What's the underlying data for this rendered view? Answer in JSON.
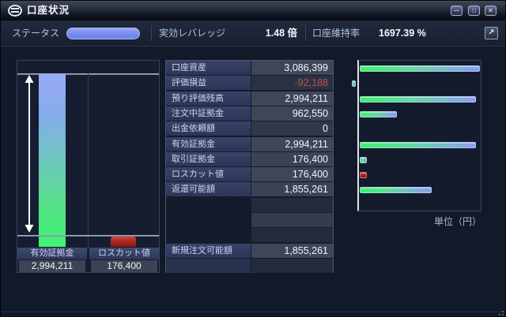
{
  "window": {
    "title": "口座状況",
    "controls": {
      "minimize_glyph": "─",
      "maximize_glyph": "□",
      "close_glyph": "✕"
    }
  },
  "status_bar": {
    "status_label": "ステータス",
    "leverage_label": "実効レバレッジ",
    "leverage_value": "1.48 倍",
    "maintenance_label": "口座維持率",
    "maintenance_value": "1697.39 %",
    "popout_glyph": "↗"
  },
  "left_chart": {
    "columns": [
      {
        "label": "有効証拠金",
        "value": "2,994,211"
      },
      {
        "label": "ロスカット値",
        "value": "176,400"
      }
    ]
  },
  "table": {
    "rows": [
      {
        "label": "口座資産",
        "value": "3,086,399",
        "shade": "light"
      },
      {
        "label": "評価損益",
        "value": "-92,188",
        "shade": "dark",
        "negative": true
      },
      {
        "label": "預り評価残高",
        "value": "2,994,211",
        "shade": "light"
      },
      {
        "label": "注文中証拠金",
        "value": "962,550",
        "shade": "light"
      },
      {
        "label": "出金依頼額",
        "value": "0",
        "shade": "mid"
      },
      {
        "label": "有効証拠金",
        "value": "2,994,211",
        "shade": "light"
      },
      {
        "label": "取引証拠金",
        "value": "176,400",
        "shade": "mid2"
      },
      {
        "label": "ロスカット値",
        "value": "176,400",
        "shade": "light"
      },
      {
        "label": "返還可能額",
        "value": "1,855,261",
        "shade": "mid2"
      },
      {
        "shade": "spdark"
      },
      {
        "shade": "splight"
      },
      {
        "shade": "spdark"
      },
      {
        "label": "新規注文可能額",
        "value": "1,855,261",
        "shade": "light"
      },
      {
        "shade": "spdark",
        "label_tint": true
      }
    ]
  },
  "right_chart": {
    "unit_label": "単位（円）"
  },
  "chart_data": [
    {
      "type": "bar",
      "orientation": "vertical",
      "title": "margin-level-gauge",
      "categories": [
        "有効証拠金",
        "ロスカット値"
      ],
      "values": [
        2994211,
        176400
      ],
      "colors": [
        "blue-green-gradient",
        "red"
      ]
    },
    {
      "type": "bar",
      "orientation": "horizontal",
      "title": "account-values",
      "categories": [
        "口座資産",
        "評価損益",
        "預り評価残高",
        "注文中証拠金",
        "出金依頼額",
        "有効証拠金",
        "取引証拠金",
        "ロスカット値",
        "返還可能額"
      ],
      "values": [
        3086399,
        -92188,
        2994211,
        962550,
        0,
        2994211,
        176400,
        176400,
        1855261
      ],
      "colors": [
        "gradient",
        "gradient",
        "gradient",
        "gradient",
        "none",
        "gradient",
        "gradient",
        "red",
        "gradient"
      ],
      "unit_label": "単位（円）",
      "axis_zero": "left"
    }
  ],
  "colors": {
    "accent_pill": "#7d90f2",
    "negative_text": "#c14f48",
    "bar_green": "#3df26d",
    "bar_mid": "#66d6a6",
    "bar_blue": "#8b9cf3",
    "bar_red": "#b3231c"
  }
}
